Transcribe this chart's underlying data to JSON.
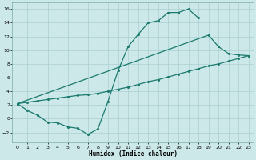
{
  "xlabel": "Humidex (Indice chaleur)",
  "bg_color": "#cce8e8",
  "grid_color": "#aacfcf",
  "line_color": "#1a7a6e",
  "xlim": [
    -0.5,
    23.5
  ],
  "ylim": [
    -3.5,
    17
  ],
  "xticks": [
    0,
    1,
    2,
    3,
    4,
    5,
    6,
    7,
    8,
    9,
    10,
    11,
    12,
    13,
    14,
    15,
    16,
    17,
    18,
    19,
    20,
    21,
    22,
    23
  ],
  "yticks": [
    -2,
    0,
    2,
    4,
    6,
    8,
    10,
    12,
    14,
    16
  ],
  "line1_x": [
    0,
    1,
    2,
    3,
    4,
    5,
    6,
    7,
    8,
    9,
    10,
    11,
    12,
    13,
    14,
    15,
    16,
    17,
    18
  ],
  "line1_y": [
    2.2,
    1.2,
    0.5,
    -0.5,
    -0.6,
    -1.2,
    -1.4,
    -2.3,
    -1.5,
    2.5,
    7.0,
    10.5,
    12.3,
    14.0,
    14.3,
    15.5,
    15.5,
    16.0,
    14.7
  ],
  "line2_x": [
    0,
    19,
    20,
    21,
    22,
    23
  ],
  "line2_y": [
    2.2,
    12.2,
    10.5,
    9.5,
    9.3,
    9.2
  ],
  "line3_x": [
    0,
    1,
    2,
    3,
    4,
    5,
    6,
    7,
    8,
    9,
    10,
    11,
    12,
    13,
    14,
    15,
    16,
    17,
    18,
    19,
    20,
    21,
    22,
    23
  ],
  "line3_y": [
    2.2,
    2.4,
    2.6,
    2.8,
    3.0,
    3.2,
    3.4,
    3.5,
    3.7,
    4.0,
    4.3,
    4.6,
    5.0,
    5.4,
    5.7,
    6.1,
    6.5,
    6.9,
    7.3,
    7.7,
    8.0,
    8.4,
    8.8,
    9.2
  ]
}
